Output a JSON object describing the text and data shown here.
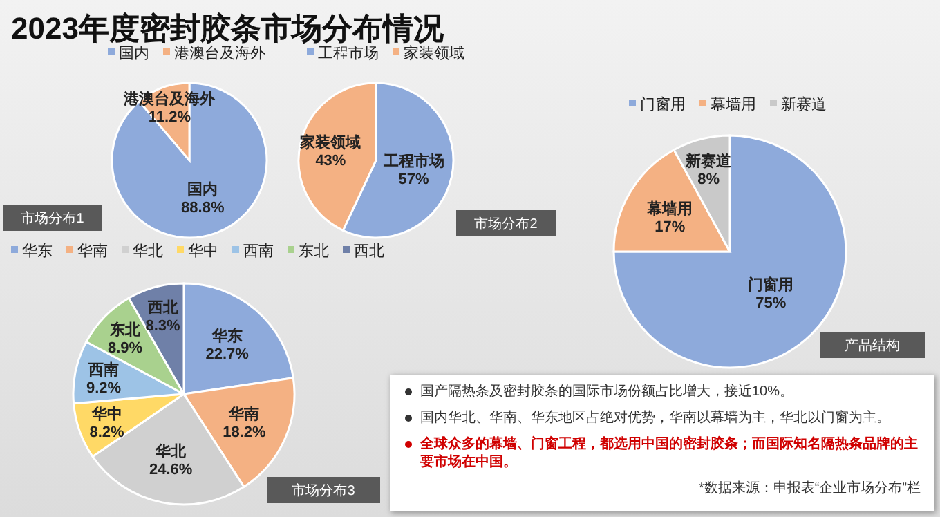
{
  "chart_data": [
    {
      "type": "pie",
      "title": "2023年度密封胶条市场分布情况",
      "categories": [
        "国内",
        "港澳台及海外"
      ],
      "values": [
        88.8,
        11.2
      ],
      "colors": [
        "#8eaadb",
        "#f4b183"
      ],
      "value_labels": [
        "88.8%",
        "11.2%"
      ],
      "legend": "top",
      "annotations": [
        "市场分布1"
      ]
    },
    {
      "type": "pie",
      "categories": [
        "工程市场",
        "家装领域"
      ],
      "values": [
        57,
        43
      ],
      "colors": [
        "#8eaadb",
        "#f4b183"
      ],
      "value_labels": [
        "57%",
        "43%"
      ],
      "legend": "top",
      "annotations": [
        "市场分布2"
      ]
    },
    {
      "type": "pie",
      "categories": [
        "门窗用",
        "幕墙用",
        "新赛道"
      ],
      "values": [
        75,
        17,
        8
      ],
      "colors": [
        "#8eaadb",
        "#f4b183",
        "#c9c9c9"
      ],
      "value_labels": [
        "75%",
        "17%",
        "8%"
      ],
      "legend": "top",
      "annotations": [
        "产品结构"
      ]
    },
    {
      "type": "pie",
      "categories": [
        "华东",
        "华南",
        "华北",
        "华中",
        "西南",
        "东北",
        "西北"
      ],
      "values": [
        22.7,
        18.2,
        24.6,
        8.2,
        9.2,
        8.9,
        8.3
      ],
      "colors": [
        "#8eaadb",
        "#f4b183",
        "#d0d0d0",
        "#ffd966",
        "#9dc3e6",
        "#a9d18e",
        "#6f80a8"
      ],
      "value_labels": [
        "22.7%",
        "18.2%",
        "24.6%",
        "8.2%",
        "9.2%",
        "8.9%",
        "8.3%"
      ],
      "legend": "top",
      "annotations": [
        "市场分布3"
      ]
    },
    {
      "type": "other",
      "annotations": [
        "国产隔热条及密封胶条的国际市场份额占比增大，接近10%。",
        "国内华北、华南、华东地区占绝对优势，华南以幕墙为主，华北以门窗为主。",
        "全球众多的幕墙、门窗工程，都选用中国的密封胶条；而国际知名隔热条品牌的主要市场在中国。",
        "*数据来源：申报表“企业市场分布”栏"
      ]
    }
  ]
}
